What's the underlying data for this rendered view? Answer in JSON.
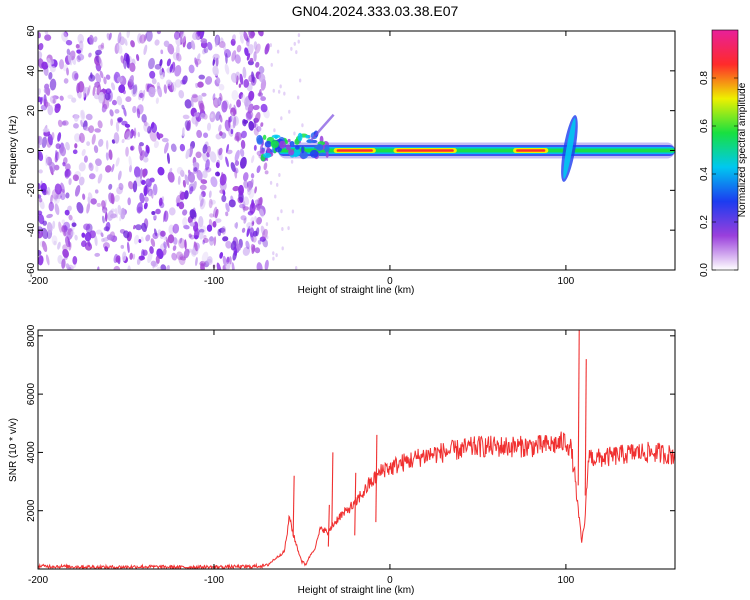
{
  "title": "GN04.2024.333.03.38.E07",
  "chart_data": [
    {
      "type": "heatmap",
      "xlabel": "Height of straight line (km)",
      "ylabel": "Frequency (Hz)",
      "xlim": [
        -200,
        162
      ],
      "ylim": [
        -60,
        60
      ],
      "x_ticks": [
        -200,
        -100,
        0,
        100
      ],
      "y_ticks": [
        -60,
        -40,
        -20,
        0,
        20,
        40,
        60
      ],
      "grid": false,
      "colorbar": {
        "label": "Normalized spectral amplitude",
        "range": [
          0,
          1
        ],
        "ticks": [
          0.0,
          0.2,
          0.4,
          0.6,
          0.8
        ],
        "tick_labels": [
          "0.0",
          "0.2",
          "0.4",
          "0.6",
          "0.8"
        ],
        "colors": [
          "#ffffff",
          "#9a3fdc",
          "#1c3cf0",
          "#00c8f0",
          "#18e040",
          "#eef000",
          "#ff2a2a",
          "#e8209a"
        ]
      },
      "features": {
        "noise_region_x": [
          -200,
          -72
        ],
        "signal_band_x": [
          -75,
          162
        ],
        "signal_center_hz": 0,
        "burst_x": 102,
        "burst_freq_range_hz": [
          -16,
          18
        ],
        "peak_segments_x": [
          [
            -32,
            -8
          ],
          [
            2,
            38
          ],
          [
            70,
            90
          ]
        ]
      }
    },
    {
      "type": "line",
      "xlabel": "Height of straight line (km)",
      "ylabel": "SNR (10 * v/v)",
      "xlim": [
        -200,
        162
      ],
      "ylim": [
        0,
        8200
      ],
      "x_ticks": [
        -200,
        -100,
        0,
        100
      ],
      "y_ticks": [
        2000,
        4000,
        6000,
        8000
      ],
      "grid": false,
      "color": "#f03030",
      "series": [
        {
          "x": [
            -200,
            -180,
            -160,
            -140,
            -120,
            -100,
            -80,
            -70,
            -60,
            -57,
            -55,
            -52,
            -50,
            -48,
            -45,
            -42,
            -40,
            -38,
            -35,
            -33,
            -31,
            -29,
            -26,
            -23,
            -20,
            -17,
            -14,
            -12,
            -10,
            -7,
            -4,
            -2,
            0,
            5,
            10,
            20,
            30,
            40,
            50,
            60,
            70,
            80,
            90,
            96,
            100,
            103,
            105,
            107,
            109,
            111,
            113,
            115,
            120,
            130,
            140,
            150,
            162
          ],
          "y": [
            100,
            80,
            60,
            80,
            60,
            70,
            80,
            120,
            600,
            1800,
            1200,
            600,
            250,
            150,
            500,
            800,
            1300,
            1400,
            1200,
            1500,
            1600,
            1800,
            1900,
            2100,
            2200,
            2500,
            2700,
            2900,
            3000,
            3200,
            3400,
            3500,
            3450,
            3600,
            3700,
            3900,
            4000,
            4100,
            4200,
            4200,
            4200,
            4200,
            4250,
            4300,
            4400,
            4100,
            3200,
            2000,
            900,
            1800,
            4000,
            3800,
            3800,
            3900,
            4000,
            4000,
            3900
          ]
        }
      ],
      "spikes": [
        {
          "x": -55,
          "y": 3200
        },
        {
          "x": -35,
          "y": 2200
        },
        {
          "x": -33,
          "y": 4000
        },
        {
          "x": -20,
          "y": 3300
        },
        {
          "x": -8,
          "y": 4600
        },
        {
          "x": 107,
          "y": 8200
        },
        {
          "x": 111,
          "y": 7200
        }
      ]
    }
  ]
}
